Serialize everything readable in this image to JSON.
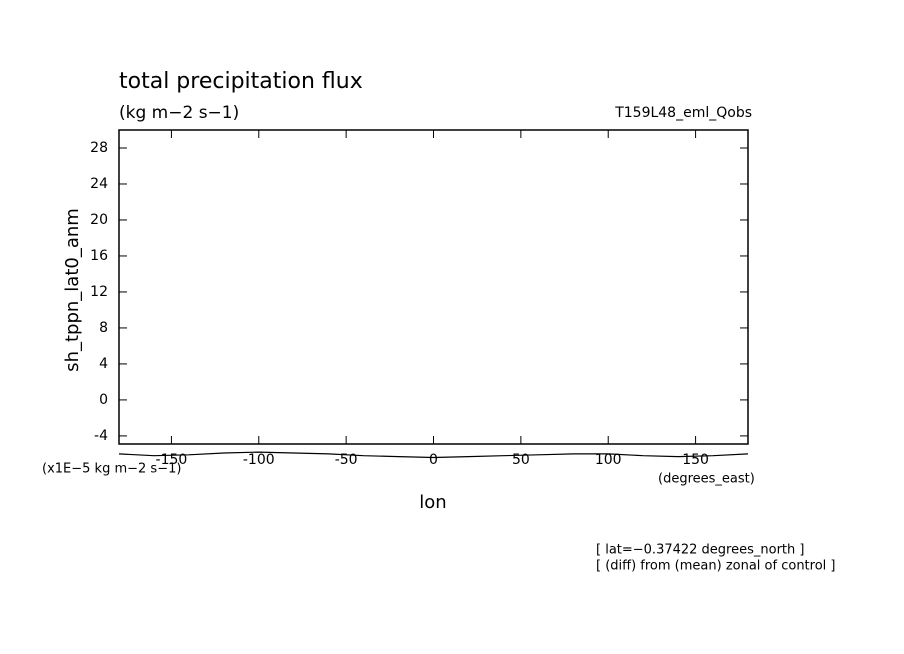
{
  "chart_data": {
    "type": "line",
    "title": "total precipitation flux",
    "subtitle": "(kg m−2 s−1)",
    "run_label": "T159L48_eml_Qobs",
    "y_label": "sh_tppn_lat0_anm",
    "x_label": "lon",
    "y_units": "(x1E−5 kg m−2 s−1)",
    "x_units": "(degrees_east)",
    "notes": [
      "[ lat=−0.37422 degrees_north ]",
      "[ (diff) from (mean) zonal of control ]"
    ],
    "color": "#000000",
    "x": [
      -180,
      -160,
      -140,
      -120,
      -100,
      -80,
      -60,
      -40,
      -20,
      0,
      20,
      40,
      60,
      80,
      100,
      120,
      140,
      160,
      180
    ],
    "values": [
      -6.0,
      -6.2,
      -6.1,
      -5.9,
      -5.8,
      -5.9,
      -6.0,
      -6.2,
      -6.3,
      -6.4,
      -6.3,
      -6.2,
      -6.1,
      -6.0,
      -6.0,
      -6.2,
      -6.3,
      -6.2,
      -6.0
    ],
    "xlim": [
      -180,
      180
    ],
    "ylim": [
      -4.9,
      30
    ],
    "xticks": [
      -150,
      -100,
      -50,
      0,
      50,
      100,
      150
    ],
    "yticks": [
      -4,
      0,
      4,
      8,
      12,
      16,
      20,
      24,
      28
    ]
  }
}
